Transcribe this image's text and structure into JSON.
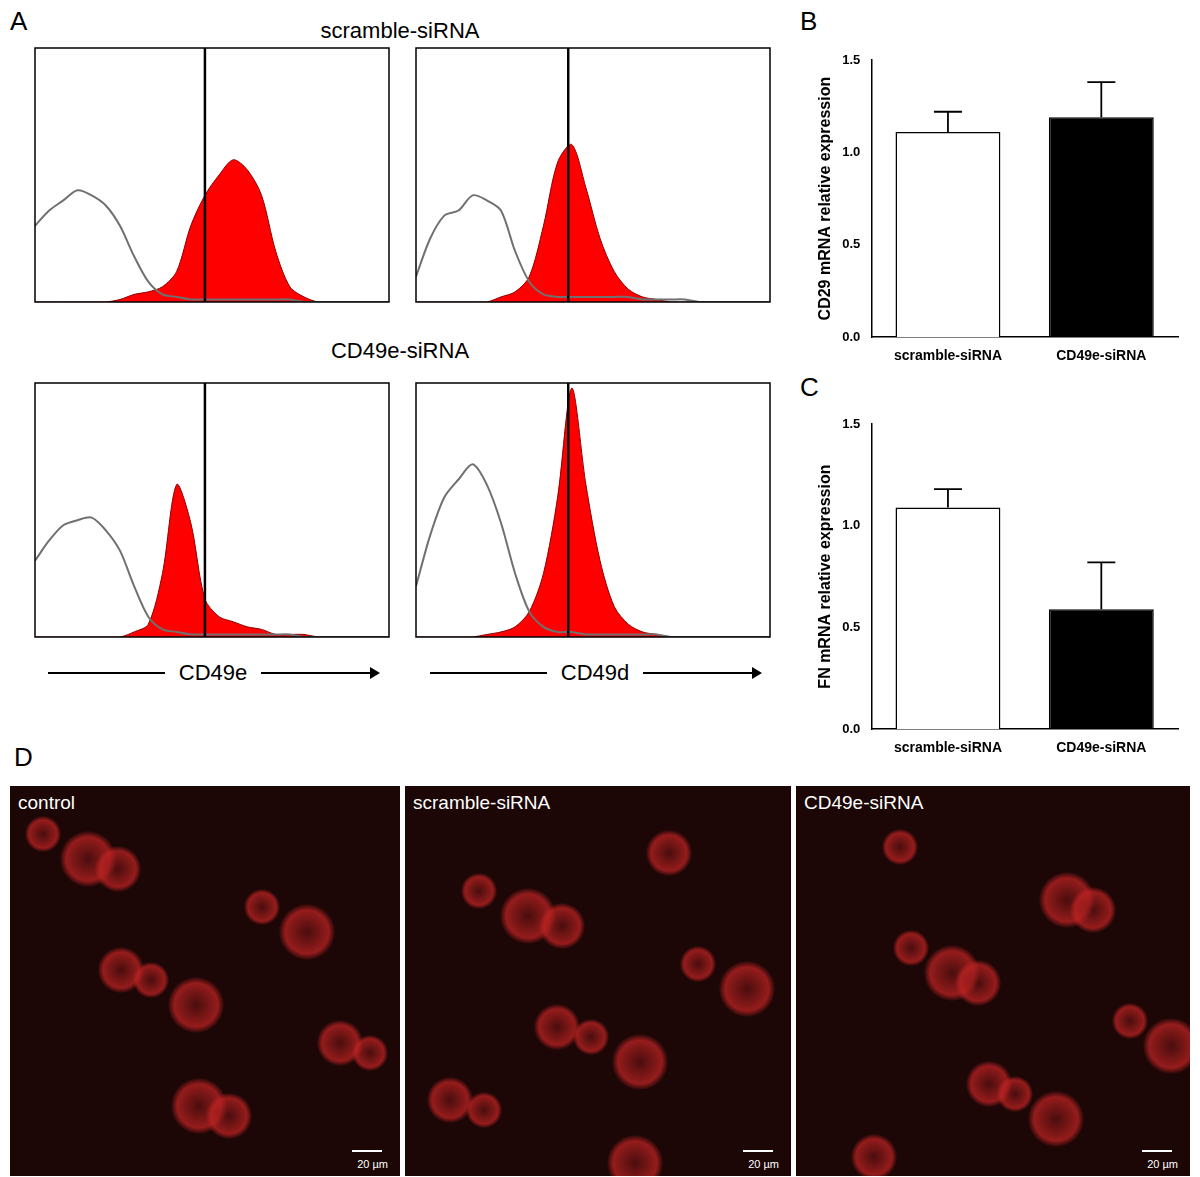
{
  "chart_data": [
    {
      "type": "line",
      "x": [
        0,
        4,
        8,
        12,
        16,
        20,
        24,
        28,
        32,
        36,
        40,
        44,
        48,
        52,
        56,
        60,
        64,
        68,
        72,
        76,
        80,
        84,
        88,
        92,
        96,
        100
      ],
      "series": [
        {
          "color": "#707070",
          "type": "line",
          "values": [
            30,
            36,
            40,
            44,
            42,
            38,
            30,
            18,
            8,
            3,
            2,
            1,
            1,
            1,
            1,
            1,
            1,
            1,
            1,
            0,
            0,
            0,
            0,
            0,
            0,
            0
          ]
        },
        {
          "color": "#ff0000",
          "type": "area",
          "values": [
            0,
            0,
            0,
            0,
            0,
            0,
            1,
            3,
            4,
            6,
            12,
            30,
            42,
            50,
            56,
            52,
            42,
            20,
            6,
            2,
            0,
            0,
            0,
            0,
            0,
            0
          ]
        }
      ],
      "reference_x": 48,
      "xlim": [
        0,
        100
      ],
      "ylim": [
        0,
        100
      ],
      "tick_labels": false,
      "grid": false
    },
    {
      "type": "line",
      "x": [
        0,
        4,
        8,
        12,
        16,
        20,
        24,
        28,
        32,
        36,
        40,
        44,
        48,
        52,
        56,
        60,
        64,
        68,
        72,
        76,
        80,
        84,
        88,
        92,
        96,
        100
      ],
      "series": [
        {
          "color": "#707070",
          "type": "line",
          "values": [
            10,
            25,
            34,
            36,
            42,
            40,
            36,
            20,
            8,
            3,
            2,
            2,
            2,
            2,
            2,
            2,
            1,
            1,
            1,
            1,
            0,
            0,
            0,
            0,
            0,
            0
          ]
        },
        {
          "color": "#ff0000",
          "type": "area",
          "values": [
            0,
            0,
            0,
            0,
            0,
            0,
            2,
            4,
            10,
            30,
            55,
            62,
            45,
            25,
            12,
            5,
            2,
            1,
            0,
            0,
            0,
            0,
            0,
            0,
            0,
            0
          ]
        }
      ],
      "reference_x": 43,
      "xlim": [
        0,
        100
      ],
      "ylim": [
        0,
        100
      ],
      "tick_labels": false,
      "grid": false
    },
    {
      "type": "line",
      "x": [
        0,
        4,
        8,
        12,
        16,
        20,
        24,
        28,
        32,
        36,
        40,
        44,
        48,
        52,
        56,
        60,
        64,
        68,
        72,
        76,
        80,
        84,
        88,
        92,
        96,
        100
      ],
      "series": [
        {
          "color": "#707070",
          "type": "line",
          "values": [
            30,
            38,
            44,
            46,
            47,
            42,
            34,
            20,
            8,
            3,
            2,
            1,
            1,
            1,
            1,
            1,
            1,
            1,
            1,
            0,
            0,
            0,
            0,
            0,
            0,
            0
          ]
        },
        {
          "color": "#ff0000",
          "type": "area",
          "values": [
            0,
            0,
            0,
            0,
            0,
            0,
            0,
            2,
            5,
            25,
            60,
            45,
            15,
            8,
            6,
            4,
            3,
            1,
            1,
            1,
            0,
            0,
            0,
            0,
            0,
            0
          ]
        }
      ],
      "reference_x": 48,
      "xlim": [
        0,
        100
      ],
      "ylim": [
        0,
        100
      ],
      "tick_labels": false,
      "grid": false
    },
    {
      "type": "line",
      "x": [
        0,
        4,
        8,
        12,
        16,
        20,
        24,
        28,
        32,
        36,
        40,
        44,
        48,
        52,
        56,
        60,
        64,
        68,
        72,
        76,
        80,
        84,
        88,
        92,
        96,
        100
      ],
      "series": [
        {
          "color": "#707070",
          "type": "line",
          "values": [
            20,
            40,
            55,
            62,
            68,
            60,
            45,
            25,
            10,
            4,
            2,
            2,
            1,
            1,
            1,
            1,
            1,
            1,
            0,
            0,
            0,
            0,
            0,
            0,
            0,
            0
          ]
        },
        {
          "color": "#ff0000",
          "type": "area",
          "values": [
            0,
            0,
            0,
            0,
            0,
            1,
            2,
            4,
            10,
            25,
            55,
            98,
            60,
            30,
            12,
            5,
            2,
            1,
            0,
            0,
            0,
            0,
            0,
            0,
            0,
            0
          ]
        }
      ],
      "reference_x": 43,
      "xlim": [
        0,
        100
      ],
      "ylim": [
        0,
        100
      ],
      "tick_labels": false,
      "grid": false
    },
    {
      "type": "bar",
      "y_label": "CD29 mRNA relative expression",
      "categories": [
        "scramble-siRNA",
        "CD49e-siRNA"
      ],
      "values": [
        1.11,
        1.19
      ],
      "error": [
        0.11,
        0.19
      ],
      "colors": [
        "#ffffff",
        "#000000"
      ],
      "ylim": [
        0,
        1.5
      ],
      "yticks": [
        {
          "value": 0,
          "label": "0.0"
        },
        {
          "value": 0.5,
          "label": "0.5"
        },
        {
          "value": 1,
          "label": "1.0"
        },
        {
          "value": 1.5,
          "label": "1.5"
        }
      ],
      "grid": false
    },
    {
      "type": "bar",
      "y_label": "FN mRNA relative expression",
      "categories": [
        "scramble-siRNA",
        "CD49e-siRNA"
      ],
      "values": [
        1.09,
        0.59
      ],
      "error": [
        0.09,
        0.23
      ],
      "colors": [
        "#ffffff",
        "#000000"
      ],
      "ylim": [
        0,
        1.5
      ],
      "yticks": [
        {
          "value": 0,
          "label": "0.0"
        },
        {
          "value": 0.5,
          "label": "0.5"
        },
        {
          "value": 1,
          "label": "1.0"
        },
        {
          "value": 1.5,
          "label": "1.5"
        }
      ],
      "grid": false
    }
  ],
  "panel_labels": [
    "A",
    "B",
    "C",
    "D"
  ],
  "row_titles": [
    "scramble-siRNA",
    "CD49e-siRNA"
  ],
  "column_axis_labels": [
    "CD49e",
    "CD49d"
  ],
  "images": [
    {
      "label": "control",
      "scale_bar": "20 µm"
    },
    {
      "label": "scramble-siRNA",
      "scale_bar": "20 µm"
    },
    {
      "label": "CD49e-siRNA",
      "scale_bar": "20 µm"
    }
  ]
}
